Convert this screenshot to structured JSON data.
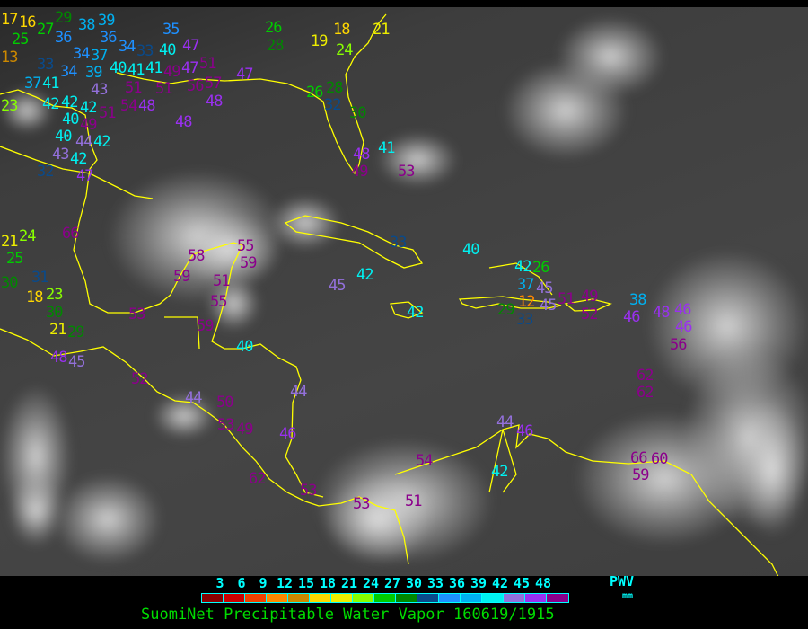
{
  "title": "SuomiNet Precipitable Water Vapor 160619/1915",
  "legend": {
    "unit_label": "PWV",
    "unit": "mm",
    "ticks": [
      "3",
      "6",
      "9",
      "12",
      "15",
      "18",
      "21",
      "24",
      "27",
      "30",
      "33",
      "36",
      "39",
      "42",
      "45",
      "48"
    ],
    "colors": [
      "#8b0000",
      "#cc0000",
      "#f04000",
      "#ff8800",
      "#cc8800",
      "#ffd700",
      "#eeee00",
      "#88ff00",
      "#00cc00",
      "#008800",
      "#0a4a8a",
      "#1e90ff",
      "#00b0f0",
      "#00f0f0",
      "#9370db",
      "#9a30f0",
      "#8b008b"
    ]
  },
  "map": {
    "coastline_color": "#ffff00"
  },
  "stations": [
    {
      "value": "17"
    },
    {
      "value": "16"
    },
    {
      "value": "29"
    },
    {
      "value": "25"
    },
    {
      "value": "36"
    },
    {
      "value": "13"
    },
    {
      "value": "27"
    },
    {
      "value": "34"
    },
    {
      "value": "33"
    },
    {
      "value": "34"
    },
    {
      "value": "37"
    },
    {
      "value": "41"
    },
    {
      "value": "37"
    },
    {
      "value": "40"
    },
    {
      "value": "39"
    },
    {
      "value": "43"
    },
    {
      "value": "23"
    },
    {
      "value": "42"
    },
    {
      "value": "42"
    },
    {
      "value": "42"
    },
    {
      "value": "40"
    },
    {
      "value": "49"
    },
    {
      "value": "51"
    },
    {
      "value": "44"
    },
    {
      "value": "42"
    },
    {
      "value": "40"
    },
    {
      "value": "43"
    },
    {
      "value": "42"
    },
    {
      "value": "47"
    },
    {
      "value": "32"
    },
    {
      "value": "38"
    },
    {
      "value": "39"
    },
    {
      "value": "36"
    },
    {
      "value": "34"
    },
    {
      "value": "33"
    },
    {
      "value": "40"
    },
    {
      "value": "35"
    },
    {
      "value": "47"
    },
    {
      "value": "51"
    },
    {
      "value": "41"
    },
    {
      "value": "41"
    },
    {
      "value": "49"
    },
    {
      "value": "47"
    },
    {
      "value": "51"
    },
    {
      "value": "51"
    },
    {
      "value": "54"
    },
    {
      "value": "48"
    },
    {
      "value": "56"
    },
    {
      "value": "57"
    },
    {
      "value": "48"
    },
    {
      "value": "48"
    },
    {
      "value": "47"
    },
    {
      "value": "26"
    },
    {
      "value": "28"
    },
    {
      "value": "18"
    },
    {
      "value": "19"
    },
    {
      "value": "24"
    },
    {
      "value": "21"
    },
    {
      "value": "26"
    },
    {
      "value": "28"
    },
    {
      "value": "32"
    },
    {
      "value": "30"
    },
    {
      "value": "41"
    },
    {
      "value": "48"
    },
    {
      "value": "49"
    },
    {
      "value": "53"
    },
    {
      "value": "33"
    },
    {
      "value": "40"
    },
    {
      "value": "42"
    },
    {
      "value": "45"
    },
    {
      "value": "42"
    },
    {
      "value": "42"
    },
    {
      "value": "26"
    },
    {
      "value": "37"
    },
    {
      "value": "45"
    },
    {
      "value": "12"
    },
    {
      "value": "45"
    },
    {
      "value": "51"
    },
    {
      "value": "33"
    },
    {
      "value": "29"
    },
    {
      "value": "49"
    },
    {
      "value": "52"
    },
    {
      "value": "38"
    },
    {
      "value": "46"
    },
    {
      "value": "48"
    },
    {
      "value": "46"
    },
    {
      "value": "56"
    },
    {
      "value": "46"
    },
    {
      "value": "66"
    },
    {
      "value": "21"
    },
    {
      "value": "24"
    },
    {
      "value": "25"
    },
    {
      "value": "30"
    },
    {
      "value": "18"
    },
    {
      "value": "31"
    },
    {
      "value": "23"
    },
    {
      "value": "30"
    },
    {
      "value": "21"
    },
    {
      "value": "29"
    },
    {
      "value": "48"
    },
    {
      "value": "45"
    },
    {
      "value": "53"
    },
    {
      "value": "58"
    },
    {
      "value": "59"
    },
    {
      "value": "55"
    },
    {
      "value": "59"
    },
    {
      "value": "51"
    },
    {
      "value": "55"
    },
    {
      "value": "59"
    },
    {
      "value": "40"
    },
    {
      "value": "52"
    },
    {
      "value": "44"
    },
    {
      "value": "50"
    },
    {
      "value": "53"
    },
    {
      "value": "49"
    },
    {
      "value": "44"
    },
    {
      "value": "46"
    },
    {
      "value": "62"
    },
    {
      "value": "62"
    },
    {
      "value": "62"
    },
    {
      "value": "44"
    },
    {
      "value": "46"
    },
    {
      "value": "54"
    },
    {
      "value": "42"
    },
    {
      "value": "53"
    },
    {
      "value": "53"
    },
    {
      "value": "51"
    },
    {
      "value": "60"
    },
    {
      "value": "66"
    },
    {
      "value": "59"
    }
  ]
}
